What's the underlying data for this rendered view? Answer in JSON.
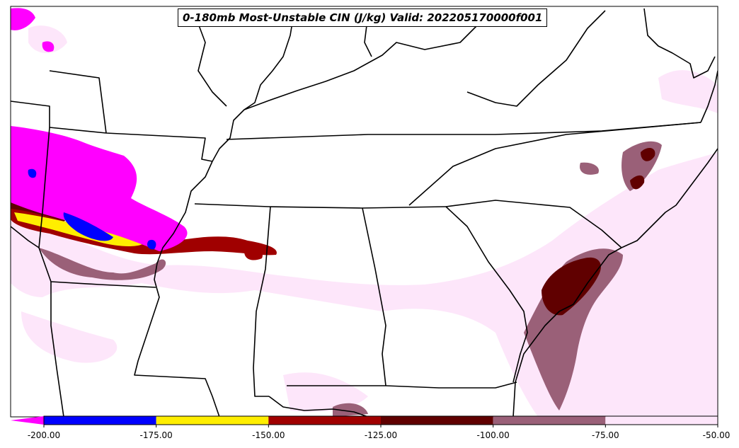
{
  "title": "0-180mb Most-Unstable CIN (J/kg) Valid: 202205170000f001",
  "colorbar": {
    "min": -200.0,
    "max": -50.0,
    "extend": "min",
    "bins": [
      {
        "from": -200,
        "to": -175,
        "color": "#0000ff"
      },
      {
        "from": -175,
        "to": -150,
        "color": "#ffee00"
      },
      {
        "from": -150,
        "to": -125,
        "color": "#a00000"
      },
      {
        "from": -125,
        "to": -100,
        "color": "#600000"
      },
      {
        "from": -100,
        "to": -75,
        "color": "#9a6078"
      },
      {
        "from": -75,
        "to": -50,
        "color": "#fde6fa"
      }
    ],
    "under_color": "#ff00ff",
    "tick_labels": [
      "-200.00",
      "-175.00",
      "-150.00",
      "-125.00",
      "-100.00",
      "-75.00",
      "-50.00"
    ]
  }
}
